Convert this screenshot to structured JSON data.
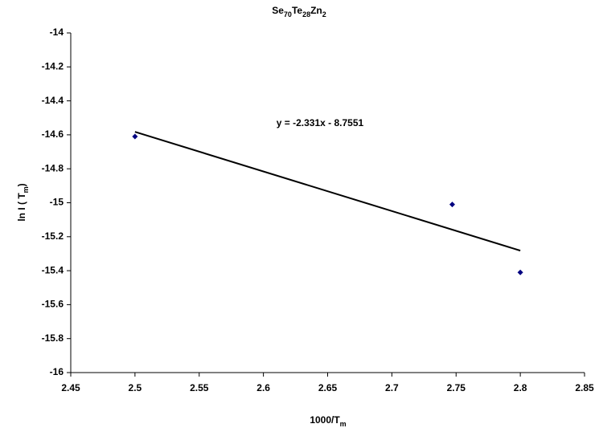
{
  "chart_data": {
    "type": "scatter",
    "title": [
      "Se",
      "70",
      "Te",
      "28",
      "Zn",
      "2"
    ],
    "x_label": [
      "1000/T",
      "m"
    ],
    "y_label": [
      "ln I ( T",
      "m",
      ")"
    ],
    "x": [
      2.5,
      2.747,
      2.8
    ],
    "values": [
      -14.61,
      -15.01,
      -15.41
    ],
    "color": "#000080",
    "xlim": [
      2.45,
      2.85
    ],
    "xticks": [
      2.45,
      2.5,
      2.55,
      2.6,
      2.65,
      2.7,
      2.75,
      2.8,
      2.85
    ],
    "ylim": [
      -16,
      -14
    ],
    "yticks": [
      -16,
      -15.8,
      -15.6,
      -15.4,
      -15.2,
      -15,
      -14.8,
      -14.6,
      -14.4,
      -14.2,
      -14
    ],
    "grid": false,
    "trendline": {
      "slope": -2.331,
      "intercept": -8.7551,
      "label": "y = -2.331x - 8.7551",
      "color": "#000000"
    }
  }
}
